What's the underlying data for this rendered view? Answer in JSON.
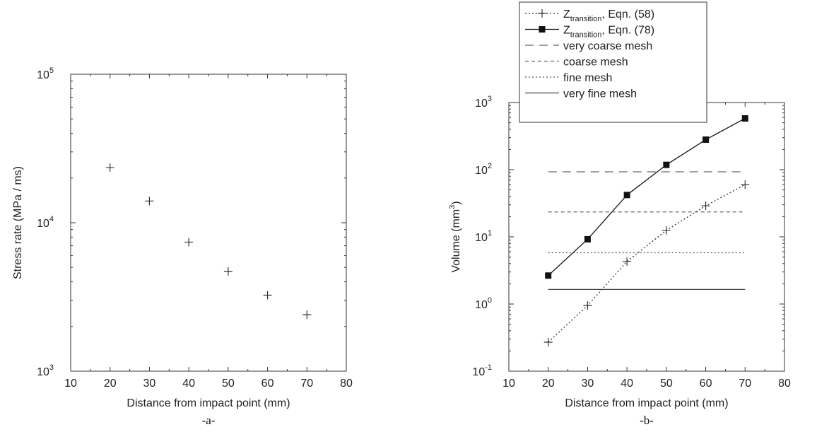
{
  "chart_data": [
    {
      "type": "scatter",
      "panel_caption": "-a-",
      "xlabel": "Distance from impact point (mm)",
      "ylabel": "Stress rate (MPa / ms)",
      "xlim": [
        10,
        80
      ],
      "ylim": [
        1000,
        100000
      ],
      "y_scale": "log",
      "x_ticks": [
        10,
        20,
        30,
        40,
        50,
        60,
        70,
        80
      ],
      "y_ticks": [
        {
          "base": "10",
          "exp": "3",
          "value": 1000
        },
        {
          "base": "10",
          "exp": "4",
          "value": 10000
        },
        {
          "base": "10",
          "exp": "5",
          "value": 100000
        }
      ],
      "grid": false,
      "series": [
        {
          "marker": "plus",
          "x": [
            20,
            30,
            40,
            50,
            60,
            70
          ],
          "y": [
            23500,
            14000,
            7400,
            4700,
            3250,
            2400
          ]
        }
      ]
    },
    {
      "type": "line",
      "panel_caption": "-b-",
      "xlabel": "Distance from impact point (mm)",
      "ylabel_main": "Volume (mm",
      "ylabel_sup": "3",
      "ylabel_end": ")",
      "xlim": [
        10,
        80
      ],
      "ylim": [
        0.1,
        1000
      ],
      "y_scale": "log",
      "x_ticks": [
        10,
        20,
        30,
        40,
        50,
        60,
        70,
        80
      ],
      "y_ticks": [
        {
          "base": "10",
          "exp": "-1",
          "value": 0.1
        },
        {
          "base": "10",
          "exp": "0",
          "value": 1
        },
        {
          "base": "10",
          "exp": "1",
          "value": 10
        },
        {
          "base": "10",
          "exp": "2",
          "value": 100
        },
        {
          "base": "10",
          "exp": "3",
          "value": 1000
        }
      ],
      "grid": false,
      "legend_position": "top-left-outside",
      "series": [
        {
          "legend_main": "Z",
          "legend_sub": "transition",
          "legend_rest": ", Eqn. (58)",
          "style": "dotted",
          "marker": "plus",
          "color": "#333333",
          "x": [
            20,
            30,
            40,
            50,
            60,
            70
          ],
          "y": [
            0.27,
            0.95,
            4.3,
            12.5,
            29,
            60
          ]
        },
        {
          "legend_main": "Z",
          "legend_sub": "transition",
          "legend_rest": ", Eqn. (78)",
          "style": "solid",
          "marker": "square",
          "color": "#111111",
          "x": [
            20,
            30,
            40,
            50,
            60,
            70
          ],
          "y": [
            2.65,
            9.2,
            42,
            118,
            280,
            580
          ]
        },
        {
          "legend": "very coarse mesh",
          "style": "long-dash",
          "color": "#666666",
          "x": [
            20,
            70
          ],
          "y": [
            93,
            93
          ]
        },
        {
          "legend": "coarse mesh",
          "style": "dash",
          "color": "#666666",
          "x": [
            20,
            70
          ],
          "y": [
            23.5,
            23.5
          ]
        },
        {
          "legend": "fine mesh",
          "style": "dotted",
          "color": "#555555",
          "x": [
            20,
            70
          ],
          "y": [
            5.8,
            5.8
          ]
        },
        {
          "legend": "very fine mesh",
          "style": "solid",
          "color": "#444444",
          "x": [
            20,
            70
          ],
          "y": [
            1.65,
            1.65
          ]
        }
      ]
    }
  ]
}
